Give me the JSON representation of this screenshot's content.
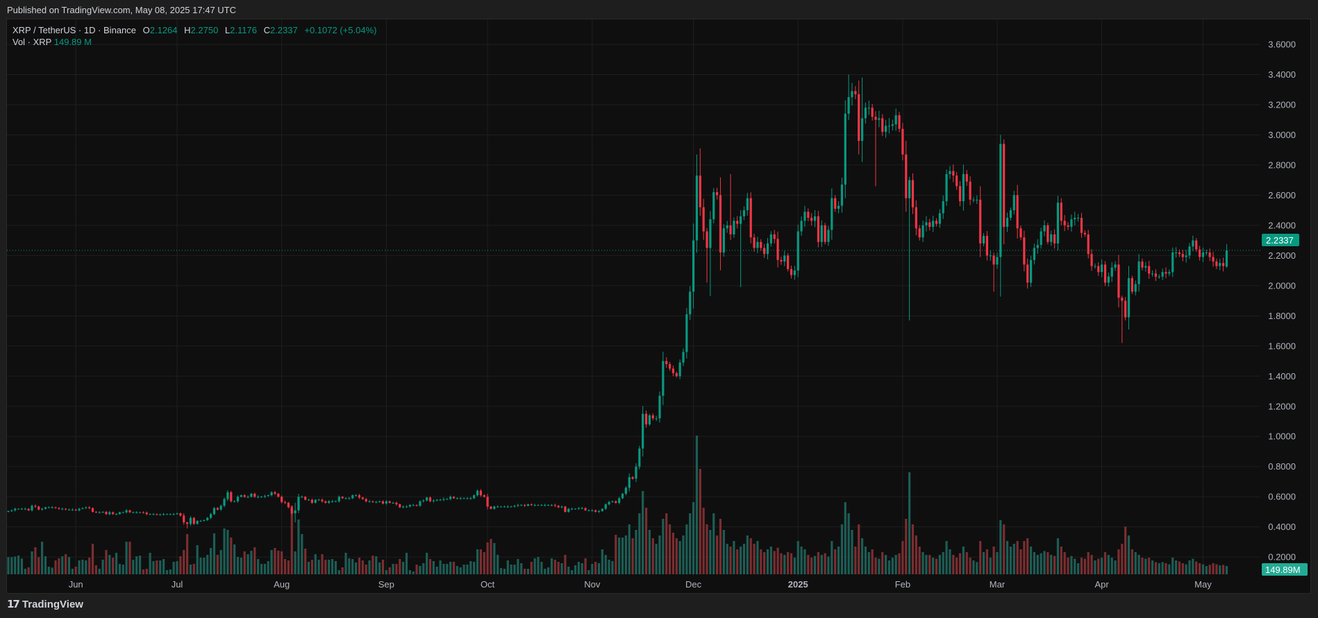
{
  "header": {
    "published": "Published on TradingView.com, May 08, 2025 17:47 UTC"
  },
  "legend": {
    "symbol": "XRP / TetherUS · 1D · Binance",
    "o_label": "O",
    "o": "2.1264",
    "h_label": "H",
    "h": "2.2750",
    "l_label": "L",
    "l": "2.1176",
    "c_label": "C",
    "c": "2.2337",
    "change": "+0.1072 (+5.04%)",
    "vol_label": "Vol · XRP",
    "vol": "149.89 M"
  },
  "footer": {
    "brand": "TradingView",
    "logo_text": "TV"
  },
  "colors": {
    "up": "#089981",
    "down": "#f23645",
    "up_volume": "#1d5d55",
    "down_volume": "#7a2e31",
    "last_price_badge": "#089981",
    "volume_badge": "#22ab94"
  },
  "chart_data": {
    "type": "candlestick",
    "interval": "1D",
    "date_range": [
      "2024-05-12",
      "2025-05-08"
    ],
    "ylim": [
      0.1,
      3.7
    ],
    "grid": true,
    "y_ticks": [
      "3.6000",
      "3.4000",
      "3.2000",
      "3.0000",
      "2.8000",
      "2.6000",
      "2.4000",
      "2.2000",
      "2.0000",
      "1.8000",
      "1.6000",
      "1.4000",
      "1.2000",
      "1.0000",
      "0.8000",
      "0.6000",
      "0.4000",
      "0.2000"
    ],
    "x_ticks": [
      {
        "label": "Jun",
        "date": "2024-06-01"
      },
      {
        "label": "Jul",
        "date": "2024-07-01"
      },
      {
        "label": "Aug",
        "date": "2024-08-01"
      },
      {
        "label": "Sep",
        "date": "2024-09-01"
      },
      {
        "label": "Oct",
        "date": "2024-10-01"
      },
      {
        "label": "Nov",
        "date": "2024-11-01"
      },
      {
        "label": "Dec",
        "date": "2024-12-01"
      },
      {
        "label": "2025",
        "date": "2025-01-01",
        "bold": true
      },
      {
        "label": "Feb",
        "date": "2025-02-01"
      },
      {
        "label": "Mar",
        "date": "2025-03-01"
      },
      {
        "label": "Apr",
        "date": "2025-04-01"
      },
      {
        "label": "May",
        "date": "2025-05-01"
      }
    ],
    "last_price_label": "2.2337",
    "last_volume_label": "149.89M",
    "first_open": 0.5,
    "last_candle": {
      "o": 2.1264,
      "h": 2.275,
      "l": 2.1176,
      "c": 2.2337
    },
    "close": [
      0.505,
      0.51,
      0.52,
      0.52,
      0.52,
      0.52,
      0.51,
      0.54,
      0.535,
      0.515,
      0.52,
      0.53,
      0.53,
      0.53,
      0.525,
      0.52,
      0.52,
      0.515,
      0.515,
      0.515,
      0.51,
      0.52,
      0.525,
      0.53,
      0.525,
      0.5,
      0.497,
      0.497,
      0.5,
      0.485,
      0.497,
      0.485,
      0.485,
      0.497,
      0.497,
      0.51,
      0.497,
      0.497,
      0.497,
      0.497,
      0.495,
      0.485,
      0.485,
      0.485,
      0.48,
      0.483,
      0.485,
      0.485,
      0.485,
      0.485,
      0.49,
      0.475,
      0.43,
      0.42,
      0.46,
      0.42,
      0.44,
      0.44,
      0.445,
      0.46,
      0.485,
      0.525,
      0.515,
      0.54,
      0.585,
      0.63,
      0.57,
      0.57,
      0.6,
      0.61,
      0.6,
      0.6,
      0.62,
      0.6,
      0.6,
      0.6,
      0.605,
      0.61,
      0.63,
      0.62,
      0.6,
      0.565,
      0.56,
      0.53,
      0.49,
      0.51,
      0.6,
      0.6,
      0.58,
      0.58,
      0.56,
      0.58,
      0.58,
      0.57,
      0.56,
      0.57,
      0.57,
      0.57,
      0.6,
      0.59,
      0.59,
      0.59,
      0.61,
      0.61,
      0.595,
      0.585,
      0.57,
      0.57,
      0.565,
      0.565,
      0.57,
      0.555,
      0.57,
      0.56,
      0.56,
      0.55,
      0.53,
      0.535,
      0.535,
      0.545,
      0.545,
      0.54,
      0.57,
      0.575,
      0.595,
      0.57,
      0.575,
      0.58,
      0.58,
      0.585,
      0.585,
      0.6,
      0.59,
      0.59,
      0.59,
      0.59,
      0.59,
      0.59,
      0.61,
      0.64,
      0.61,
      0.6,
      0.535,
      0.52,
      0.535,
      0.535,
      0.535,
      0.535,
      0.535,
      0.535,
      0.54,
      0.545,
      0.545,
      0.54,
      0.55,
      0.545,
      0.545,
      0.545,
      0.545,
      0.545,
      0.545,
      0.545,
      0.54,
      0.53,
      0.535,
      0.5,
      0.52,
      0.52,
      0.52,
      0.525,
      0.525,
      0.51,
      0.51,
      0.51,
      0.5,
      0.505,
      0.52,
      0.55,
      0.565,
      0.57,
      0.56,
      0.59,
      0.62,
      0.66,
      0.73,
      0.72,
      0.8,
      0.92,
      1.15,
      1.08,
      1.14,
      1.12,
      1.12,
      1.27,
      1.5,
      1.48,
      1.45,
      1.42,
      1.4,
      1.49,
      1.56,
      1.81,
      1.96,
      2.3,
      2.73,
      2.52,
      2.36,
      2.25,
      2.44,
      2.62,
      2.6,
      2.22,
      2.38,
      2.4,
      2.34,
      2.43,
      2.41,
      2.46,
      2.5,
      2.58,
      2.32,
      2.25,
      2.29,
      2.25,
      2.21,
      2.28,
      2.34,
      2.31,
      2.17,
      2.16,
      2.2,
      2.11,
      2.07,
      2.1,
      2.36,
      2.43,
      2.49,
      2.45,
      2.43,
      2.46,
      2.29,
      2.4,
      2.29,
      2.37,
      2.58,
      2.51,
      2.53,
      2.67,
      3.14,
      3.25,
      3.29,
      3.27,
      2.96,
      3.11,
      3.18,
      3.18,
      3.12,
      3.1,
      3.11,
      3.02,
      3.06,
      3.06,
      3.07,
      3.13,
      3.04,
      2.87,
      2.58,
      2.7,
      2.52,
      2.38,
      2.32,
      2.4,
      2.42,
      2.39,
      2.43,
      2.41,
      2.48,
      2.56,
      2.74,
      2.76,
      2.73,
      2.66,
      2.56,
      2.74,
      2.69,
      2.57,
      2.57,
      2.57,
      2.28,
      2.33,
      2.2,
      2.2,
      2.14,
      2.19,
      2.94,
      2.39,
      2.45,
      2.5,
      2.6,
      2.38,
      2.32,
      2.14,
      2.02,
      2.17,
      2.25,
      2.27,
      2.36,
      2.4,
      2.29,
      2.34,
      2.28,
      2.55,
      2.43,
      2.4,
      2.39,
      2.44,
      2.45,
      2.45,
      2.35,
      2.34,
      2.21,
      2.13,
      2.13,
      2.09,
      2.14,
      2.02,
      2.06,
      2.12,
      2.14,
      1.92,
      1.9,
      1.79,
      2.05,
      1.96,
      2.01,
      2.16,
      2.12,
      2.13,
      2.08,
      2.08,
      2.06,
      2.06,
      2.09,
      2.08,
      2.09,
      2.22,
      2.22,
      2.21,
      2.19,
      2.2,
      2.26,
      2.3,
      2.24,
      2.19,
      2.22,
      2.22,
      2.19,
      2.16,
      2.13,
      2.15,
      2.13,
      2.2337
    ],
    "notable_wicks": {
      "2024-07-04": {
        "l": 0.39
      },
      "2024-08-05": {
        "l": 0.43,
        "h": 0.56
      },
      "2024-12-02": {
        "h": 2.87
      },
      "2024-12-03": {
        "h": 2.91
      },
      "2024-12-05": {
        "l": 2.02
      },
      "2024-12-06": {
        "l": 1.93
      },
      "2024-12-12": {
        "h": 2.74
      },
      "2024-12-15": {
        "l": 1.99
      },
      "2025-01-16": {
        "h": 3.4
      },
      "2025-01-20": {
        "h": 3.38,
        "l": 2.82
      },
      "2025-01-24": {
        "l": 2.66
      },
      "2025-02-03": {
        "l": 1.77
      },
      "2025-03-02": {
        "h": 3.0
      },
      "2025-03-03": {
        "h": 2.97
      },
      "2025-02-28": {
        "l": 1.96
      },
      "2025-04-07": {
        "l": 1.62
      },
      "2025-04-08": {
        "l": 1.77
      }
    },
    "volume_millions": [
      309,
      309,
      321,
      338,
      284,
      100,
      125,
      413,
      488,
      309,
      588,
      325,
      138,
      121,
      250,
      288,
      325,
      363,
      313,
      100,
      138,
      250,
      263,
      250,
      300,
      550,
      163,
      100,
      263,
      438,
      350,
      300,
      388,
      188,
      175,
      588,
      588,
      263,
      325,
      338,
      88,
      100,
      388,
      238,
      250,
      250,
      275,
      75,
      88,
      225,
      238,
      325,
      438,
      725,
      175,
      188,
      525,
      300,
      300,
      350,
      475,
      738,
      350,
      438,
      826,
      800,
      663,
      538,
      313,
      300,
      413,
      363,
      425,
      488,
      275,
      188,
      188,
      238,
      438,
      475,
      425,
      413,
      275,
      250,
      1238,
      413,
      988,
      725,
      463,
      225,
      263,
      363,
      263,
      363,
      263,
      263,
      275,
      238,
      75,
      125,
      388,
      288,
      275,
      213,
      300,
      250,
      175,
      250,
      338,
      325,
      213,
      263,
      75,
      125,
      188,
      188,
      275,
      225,
      388,
      75,
      50,
      175,
      150,
      200,
      388,
      275,
      238,
      138,
      250,
      188,
      188,
      225,
      225,
      150,
      125,
      175,
      175,
      238,
      225,
      450,
      450,
      400,
      575,
      638,
      563,
      350,
      113,
      100,
      250,
      175,
      175,
      275,
      200,
      100,
      100,
      225,
      288,
      313,
      225,
      100,
      125,
      288,
      263,
      225,
      200,
      350,
      138,
      75,
      163,
      225,
      200,
      288,
      75,
      188,
      225,
      200,
      450,
      350,
      263,
      238,
      713,
      663,
      663,
      700,
      900,
      650,
      800,
      1100,
      1500,
      1200,
      800,
      650,
      550,
      700,
      1000,
      1100,
      900,
      750,
      650,
      600,
      700,
      900,
      1100,
      1300,
      2500,
      1900,
      1200,
      900,
      800,
      1100,
      700,
      1000,
      800,
      550,
      500,
      600,
      450,
      500,
      550,
      700,
      650,
      550,
      600,
      450,
      400,
      450,
      500,
      420,
      480,
      380,
      350,
      400,
      380,
      300,
      600,
      500,
      450,
      350,
      300,
      330,
      400,
      350,
      380,
      320,
      600,
      450,
      500,
      900,
      1300,
      1100,
      800,
      500,
      900,
      650,
      500,
      400,
      450,
      300,
      280,
      400,
      350,
      250,
      300,
      350,
      380,
      600,
      1000,
      1840,
      900,
      700,
      500,
      400,
      350,
      350,
      300,
      280,
      350,
      400,
      600,
      450,
      350,
      300,
      380,
      500,
      400,
      300,
      250,
      220,
      600,
      400,
      450,
      300,
      500,
      400,
      975,
      900,
      600,
      500,
      550,
      600,
      450,
      600,
      650,
      500,
      400,
      350,
      380,
      420,
      400,
      350,
      330,
      650,
      500,
      400,
      300,
      330,
      280,
      200,
      300,
      280,
      400,
      350,
      250,
      280,
      300,
      400,
      350,
      300,
      250,
      450,
      550,
      860,
      700,
      450,
      400,
      350,
      300,
      280,
      300,
      250,
      220,
      200,
      220,
      200,
      180,
      300,
      250,
      230,
      200,
      180,
      250,
      280,
      230,
      200,
      180,
      150,
      170,
      200,
      180,
      160,
      170,
      149.89
    ]
  }
}
